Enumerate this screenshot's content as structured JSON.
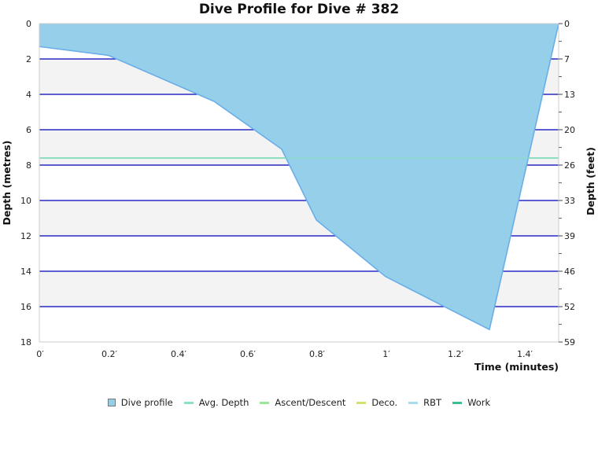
{
  "title": "Dive Profile for Dive # 382",
  "colors": {
    "profile_fill": "#96cfea",
    "profile_stroke": "#6aaee8",
    "grid_line": "#0000bb",
    "band_fill": "#f3f3f3",
    "avg_depth": "#8de0c0",
    "ascent_descent": "#98e898",
    "deco": "#d4e070",
    "rbt": "#a8dcf0",
    "work": "#3cbf90"
  },
  "legend": {
    "items": [
      {
        "label": "Dive profile",
        "type": "box",
        "color": "#96cfea"
      },
      {
        "label": "Avg. Depth",
        "type": "line",
        "color": "#8de0c0"
      },
      {
        "label": "Ascent/Descent",
        "type": "line",
        "color": "#98e898"
      },
      {
        "label": "Deco.",
        "type": "line",
        "color": "#d4e070"
      },
      {
        "label": "RBT",
        "type": "line",
        "color": "#a8dcf0"
      },
      {
        "label": "Work",
        "type": "line",
        "color": "#3cbf90"
      }
    ]
  },
  "chart_data": {
    "type": "area",
    "title": "Dive Profile for Dive # 382",
    "xlabel": "Time (minutes)",
    "ylabel": "Depth (metres)",
    "ylabel_right": "Depth (feet)",
    "xlim": [
      0,
      1.5
    ],
    "ylim": [
      18,
      0
    ],
    "ylim_right": [
      59,
      0
    ],
    "x_ticks": [
      "0′",
      "0.2′",
      "0.4′",
      "0.6′",
      "0.8′",
      "1′",
      "1.2′",
      "1.4′"
    ],
    "x_tick_values": [
      0,
      0.2,
      0.4,
      0.6,
      0.8,
      1.0,
      1.2,
      1.4
    ],
    "y_ticks": [
      "0",
      "2",
      "4",
      "6",
      "8",
      "10",
      "12",
      "14",
      "16",
      "18"
    ],
    "y_tick_values": [
      0,
      2,
      4,
      6,
      8,
      10,
      12,
      14,
      16,
      18
    ],
    "y_right_ticks": [
      "0",
      "7",
      "13",
      "20",
      "26",
      "33",
      "39",
      "46",
      "52",
      "59"
    ],
    "grid": true,
    "legend_position": "bottom",
    "series": [
      {
        "name": "Dive profile",
        "type": "area",
        "x": [
          0,
          0.2,
          0.505,
          0.7,
          0.8,
          1.0,
          1.3,
          1.5
        ],
        "values": [
          1.3,
          1.8,
          4.4,
          7.1,
          11.1,
          14.3,
          17.3,
          0
        ]
      },
      {
        "name": "Avg. Depth",
        "type": "line",
        "x": [
          0,
          1.5
        ],
        "values": [
          7.6,
          7.6
        ]
      },
      {
        "name": "Ascent/Descent",
        "type": "line",
        "x": [],
        "values": []
      },
      {
        "name": "Deco.",
        "type": "line",
        "x": [],
        "values": []
      },
      {
        "name": "RBT",
        "type": "line",
        "x": [],
        "values": []
      },
      {
        "name": "Work",
        "type": "line",
        "x": [],
        "values": []
      }
    ]
  }
}
